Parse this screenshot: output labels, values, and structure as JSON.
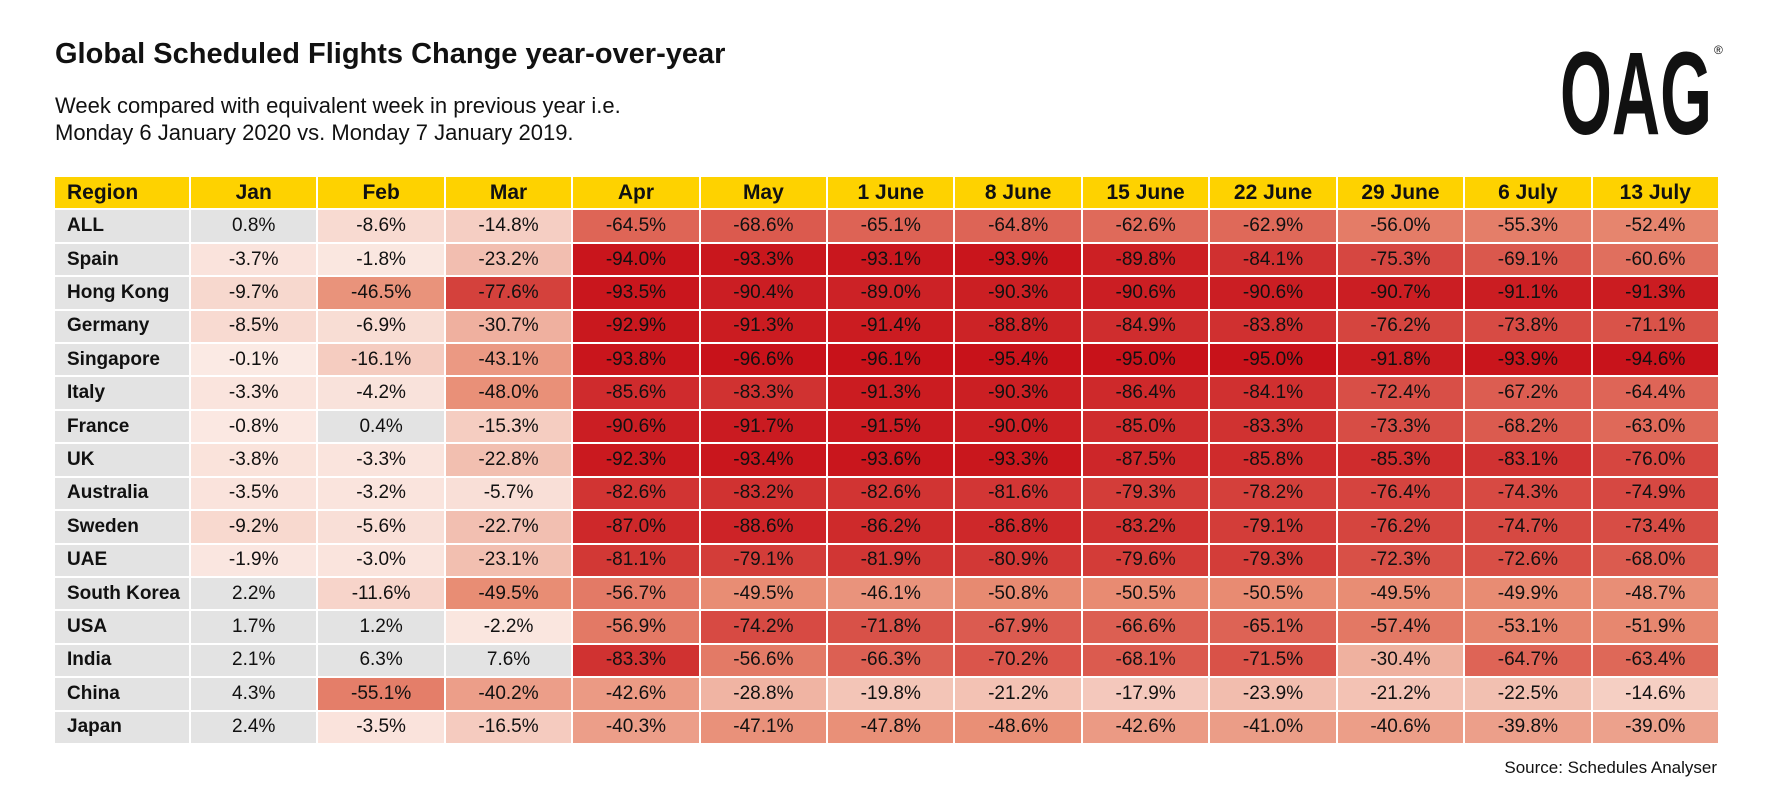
{
  "header": {
    "title": "Global Scheduled Flights Change year-over-year",
    "subtitle_lines": [
      "Week compared with equivalent week in previous year i.e.",
      "Monday 6 January 2020 vs. Monday 7 January 2019."
    ],
    "logo": "OAG",
    "logo_mark": "®"
  },
  "table": {
    "columns": [
      "Region",
      "Jan",
      "Feb",
      "Mar",
      "Apr",
      "May",
      "1 June",
      "8 June",
      "15 June",
      "22 June",
      "29 June",
      "6 July",
      "13 July"
    ],
    "rows": [
      [
        "ALL",
        "0.8%",
        "-8.6%",
        "-14.8%",
        "-64.5%",
        "-68.6%",
        "-65.1%",
        "-64.8%",
        "-62.6%",
        "-62.9%",
        "-56.0%",
        "-55.3%",
        "-52.4%"
      ],
      [
        "Spain",
        "-3.7%",
        "-1.8%",
        "-23.2%",
        "-94.0%",
        "-93.3%",
        "-93.1%",
        "-93.9%",
        "-89.8%",
        "-84.1%",
        "-75.3%",
        "-69.1%",
        "-60.6%"
      ],
      [
        "Hong Kong",
        "-9.7%",
        "-46.5%",
        "-77.6%",
        "-93.5%",
        "-90.4%",
        "-89.0%",
        "-90.3%",
        "-90.6%",
        "-90.6%",
        "-90.7%",
        "-91.1%",
        "-91.3%"
      ],
      [
        "Germany",
        "-8.5%",
        "-6.9%",
        "-30.7%",
        "-92.9%",
        "-91.3%",
        "-91.4%",
        "-88.8%",
        "-84.9%",
        "-83.8%",
        "-76.2%",
        "-73.8%",
        "-71.1%"
      ],
      [
        "Singapore",
        "-0.1%",
        "-16.1%",
        "-43.1%",
        "-93.8%",
        "-96.6%",
        "-96.1%",
        "-95.4%",
        "-95.0%",
        "-95.0%",
        "-91.8%",
        "-93.9%",
        "-94.6%"
      ],
      [
        "Italy",
        "-3.3%",
        "-4.2%",
        "-48.0%",
        "-85.6%",
        "-83.3%",
        "-91.3%",
        "-90.3%",
        "-86.4%",
        "-84.1%",
        "-72.4%",
        "-67.2%",
        "-64.4%"
      ],
      [
        "France",
        "-0.8%",
        "0.4%",
        "-15.3%",
        "-90.6%",
        "-91.7%",
        "-91.5%",
        "-90.0%",
        "-85.0%",
        "-83.3%",
        "-73.3%",
        "-68.2%",
        "-63.0%"
      ],
      [
        "UK",
        "-3.8%",
        "-3.3%",
        "-22.8%",
        "-92.3%",
        "-93.4%",
        "-93.6%",
        "-93.3%",
        "-87.5%",
        "-85.8%",
        "-85.3%",
        "-83.1%",
        "-76.0%"
      ],
      [
        "Australia",
        "-3.5%",
        "-3.2%",
        "-5.7%",
        "-82.6%",
        "-83.2%",
        "-82.6%",
        "-81.6%",
        "-79.3%",
        "-78.2%",
        "-76.4%",
        "-74.3%",
        "-74.9%"
      ],
      [
        "Sweden",
        "-9.2%",
        "-5.6%",
        "-22.7%",
        "-87.0%",
        "-88.6%",
        "-86.2%",
        "-86.8%",
        "-83.2%",
        "-79.1%",
        "-76.2%",
        "-74.7%",
        "-73.4%"
      ],
      [
        "UAE",
        "-1.9%",
        "-3.0%",
        "-23.1%",
        "-81.1%",
        "-79.1%",
        "-81.9%",
        "-80.9%",
        "-79.6%",
        "-79.3%",
        "-72.3%",
        "-72.6%",
        "-68.0%"
      ],
      [
        "South Korea",
        "2.2%",
        "-11.6%",
        "-49.5%",
        "-56.7%",
        "-49.5%",
        "-46.1%",
        "-50.8%",
        "-50.5%",
        "-50.5%",
        "-49.5%",
        "-49.9%",
        "-48.7%"
      ],
      [
        "USA",
        "1.7%",
        "1.2%",
        "-2.2%",
        "-56.9%",
        "-74.2%",
        "-71.8%",
        "-67.9%",
        "-66.6%",
        "-65.1%",
        "-57.4%",
        "-53.1%",
        "-51.9%"
      ],
      [
        "India",
        "2.1%",
        "6.3%",
        "7.6%",
        "-83.3%",
        "-56.6%",
        "-66.3%",
        "-70.2%",
        "-68.1%",
        "-71.5%",
        "-30.4%",
        "-64.7%",
        "-63.4%"
      ],
      [
        "China",
        "4.3%",
        "-55.1%",
        "-40.2%",
        "-42.6%",
        "-28.8%",
        "-19.8%",
        "-21.2%",
        "-17.9%",
        "-23.9%",
        "-21.2%",
        "-22.5%",
        "-14.6%"
      ],
      [
        "Japan",
        "2.4%",
        "-3.5%",
        "-16.5%",
        "-40.3%",
        "-47.1%",
        "-47.8%",
        "-48.6%",
        "-42.6%",
        "-41.0%",
        "-40.6%",
        "-39.8%",
        "-39.0%"
      ]
    ]
  },
  "footer": {
    "source": "Source: Schedules Analyser"
  }
}
